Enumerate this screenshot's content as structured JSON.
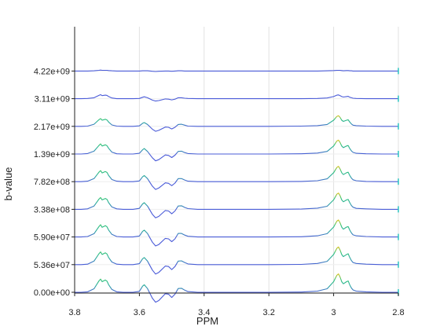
{
  "chart_data": {
    "type": "line",
    "title": "",
    "xlabel": "PPM",
    "ylabel": "b-value",
    "x_reversed": true,
    "xlim": [
      2.8,
      3.8
    ],
    "xticks": [
      3.8,
      3.6,
      3.4,
      3.2,
      3,
      2.8
    ],
    "xtick_labels": [
      "3.8",
      "3.6",
      "3.4",
      "3.2",
      "3",
      "2.8"
    ],
    "grid": true,
    "legend": "none",
    "colormap": [
      "#4a5bd8",
      "#2aa7a0",
      "#2bc27a",
      "#d8c21a"
    ],
    "ytick_labels": [
      "0.00e+00",
      "5.36e+07",
      "5.90e+07",
      "3.38e+08",
      "7.82e+08",
      "1.39e+09",
      "2.17e+09",
      "3.11e+09",
      "4.22e+09"
    ],
    "x": [
      3.8,
      3.78,
      3.76,
      3.74,
      3.725,
      3.72,
      3.715,
      3.705,
      3.7,
      3.695,
      3.685,
      3.67,
      3.65,
      3.62,
      3.6,
      3.59,
      3.585,
      3.575,
      3.56,
      3.55,
      3.54,
      3.52,
      3.51,
      3.5,
      3.49,
      3.48,
      3.47,
      3.46,
      3.45,
      3.42,
      3.38,
      3.3,
      3.2,
      3.1,
      3.05,
      3.02,
      3.0,
      2.99,
      2.985,
      2.98,
      2.975,
      2.97,
      2.96,
      2.955,
      2.95,
      2.945,
      2.94,
      2.93,
      2.9,
      2.85,
      2.8
    ],
    "series": [
      {
        "b": "0.00e+00",
        "values": [
          0,
          0,
          0.2,
          1.5,
          4.8,
          5.6,
          4.5,
          5.2,
          4.7,
          3.2,
          1.2,
          0.2,
          0,
          0,
          0.4,
          2.6,
          3.2,
          1.6,
          -2.5,
          -4.2,
          -3.5,
          -0.6,
          -0.8,
          -2.2,
          -0.8,
          1.6,
          1.7,
          0.9,
          0.3,
          0,
          0,
          0,
          0,
          0.1,
          0.5,
          1.5,
          4.5,
          7.2,
          7.8,
          6.5,
          4.5,
          3.6,
          4.5,
          4.8,
          3.1,
          1.8,
          1.0,
          0.5,
          0.2,
          0,
          0
        ]
      },
      {
        "b": "5.36e+07",
        "values": [
          0,
          0,
          0.2,
          1.5,
          4.6,
          5.4,
          4.3,
          5.0,
          4.5,
          3.0,
          1.1,
          0.2,
          0,
          0,
          0.4,
          2.5,
          3.0,
          1.5,
          -2.3,
          -4.0,
          -3.3,
          -0.6,
          -0.8,
          -2.1,
          -0.8,
          1.5,
          1.6,
          0.9,
          0.3,
          0,
          0,
          0,
          0,
          0.1,
          0.5,
          1.4,
          4.3,
          6.9,
          7.5,
          6.2,
          4.3,
          3.4,
          4.3,
          4.6,
          3.0,
          1.7,
          0.9,
          0.5,
          0.2,
          0,
          0
        ]
      },
      {
        "b": "5.90e+07",
        "values": [
          0,
          0,
          0.2,
          1.4,
          4.4,
          5.2,
          4.1,
          4.8,
          4.3,
          2.9,
          1.1,
          0.2,
          0,
          0,
          0.4,
          2.4,
          2.9,
          1.5,
          -2.2,
          -3.8,
          -3.2,
          -0.6,
          -0.8,
          -2.0,
          -0.8,
          1.5,
          1.5,
          0.8,
          0.3,
          0,
          0,
          0,
          0,
          0.1,
          0.5,
          1.4,
          4.2,
          6.7,
          7.2,
          6.0,
          4.2,
          3.3,
          4.2,
          4.4,
          2.9,
          1.7,
          0.9,
          0.5,
          0.2,
          0,
          0
        ]
      },
      {
        "b": "3.38e+08",
        "values": [
          0,
          0,
          0.2,
          1.4,
          4.3,
          5.0,
          4.0,
          4.6,
          4.2,
          2.8,
          1.0,
          0.2,
          0,
          0,
          0.4,
          2.3,
          2.8,
          1.4,
          -2.1,
          -3.6,
          -3.0,
          -0.5,
          -0.7,
          -1.9,
          -0.7,
          1.4,
          1.5,
          0.8,
          0.3,
          0,
          0,
          0,
          0,
          0.1,
          0.5,
          1.3,
          4.0,
          6.4,
          6.9,
          5.8,
          4.0,
          3.2,
          4.0,
          4.2,
          2.8,
          1.6,
          0.9,
          0.4,
          0.2,
          0,
          0
        ]
      },
      {
        "b": "7.82e+08",
        "values": [
          0,
          0,
          0.2,
          1.3,
          4.0,
          4.7,
          3.7,
          4.3,
          3.9,
          2.6,
          0.9,
          0.2,
          0,
          0,
          0.3,
          2.1,
          2.6,
          1.3,
          -1.9,
          -3.3,
          -2.7,
          -0.5,
          -0.7,
          -1.7,
          -0.6,
          1.3,
          1.3,
          0.7,
          0.2,
          0,
          0,
          0,
          0,
          0.1,
          0.4,
          1.2,
          3.8,
          6.0,
          6.5,
          5.4,
          3.8,
          3.0,
          3.8,
          4.0,
          2.6,
          1.5,
          0.8,
          0.4,
          0.1,
          0,
          0
        ]
      },
      {
        "b": "1.39e+09",
        "values": [
          0,
          0,
          0.2,
          1.2,
          3.6,
          4.3,
          3.4,
          3.9,
          3.5,
          2.4,
          0.8,
          0.1,
          0,
          0,
          0.3,
          1.8,
          2.3,
          1.1,
          -1.6,
          -2.9,
          -2.4,
          -0.4,
          -0.6,
          -1.5,
          -0.5,
          1.1,
          1.2,
          0.6,
          0.2,
          0,
          0,
          0,
          0,
          0.1,
          0.4,
          1.1,
          3.4,
          5.5,
          5.9,
          4.9,
          3.4,
          2.7,
          3.4,
          3.6,
          2.3,
          1.3,
          0.7,
          0.3,
          0.1,
          0,
          0
        ]
      },
      {
        "b": "2.17e+09",
        "values": [
          0,
          0,
          0.1,
          0.9,
          2.8,
          3.3,
          2.6,
          3.0,
          2.7,
          1.8,
          0.6,
          0.1,
          0,
          0,
          0.2,
          1.3,
          1.6,
          0.8,
          -1.2,
          -2.1,
          -1.7,
          -0.3,
          -0.4,
          -1.1,
          -0.4,
          0.8,
          0.9,
          0.5,
          0.1,
          0,
          0,
          0,
          0,
          0.1,
          0.3,
          0.8,
          2.6,
          4.2,
          4.5,
          3.8,
          2.6,
          2.1,
          2.6,
          2.8,
          1.8,
          1.0,
          0.5,
          0.3,
          0.1,
          0,
          0
        ]
      },
      {
        "b": "3.11e+09",
        "values": [
          0,
          0,
          0.1,
          0.4,
          1.4,
          1.7,
          1.3,
          1.5,
          1.4,
          0.9,
          0.3,
          0,
          0,
          0,
          0.1,
          0.6,
          0.8,
          0.4,
          -0.6,
          -1.0,
          -0.8,
          -0.1,
          -0.2,
          -0.5,
          -0.2,
          0.4,
          0.4,
          0.2,
          0.1,
          0,
          0,
          0,
          0,
          0,
          0.1,
          0.3,
          0.9,
          1.5,
          1.6,
          1.3,
          0.9,
          0.7,
          0.9,
          1.0,
          0.6,
          0.4,
          0.2,
          0.1,
          0,
          0,
          0
        ]
      },
      {
        "b": "4.22e+09",
        "values": [
          0,
          0,
          0,
          0.1,
          0.3,
          0.4,
          0.3,
          0.3,
          0.3,
          0.2,
          0.1,
          0,
          0,
          0,
          0,
          0.1,
          0.1,
          0.1,
          -0.1,
          -0.2,
          -0.1,
          0,
          0,
          -0.1,
          0,
          0.1,
          0.1,
          0,
          0,
          0,
          0,
          0,
          0,
          0,
          0,
          0.1,
          0.2,
          0.3,
          0.3,
          0.3,
          0.2,
          0.1,
          0.2,
          0.2,
          0.1,
          0.1,
          0,
          0,
          0,
          0,
          0
        ]
      }
    ]
  }
}
